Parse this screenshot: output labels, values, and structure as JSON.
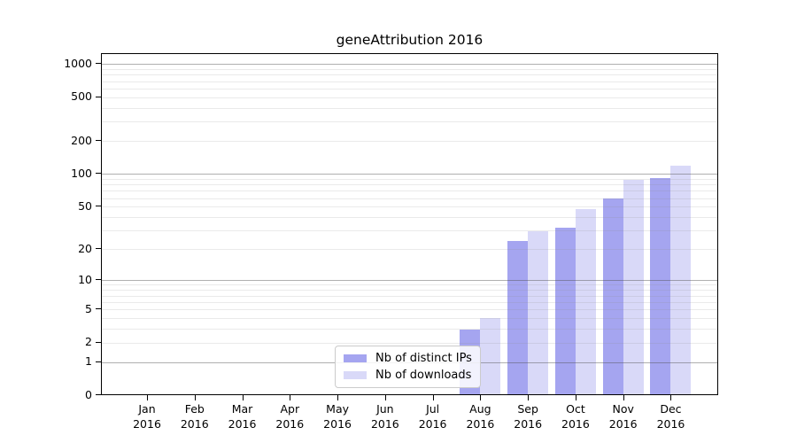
{
  "chart_data": {
    "type": "bar",
    "title": "geneAttribution 2016",
    "categories": [
      "Jan",
      "Feb",
      "Mar",
      "Apr",
      "May",
      "Jun",
      "Jul",
      "Aug",
      "Sep",
      "Oct",
      "Nov",
      "Dec"
    ],
    "year_label": "2016",
    "series": [
      {
        "name": "Nb of distinct IPs",
        "color": "#a5a5f0",
        "values": [
          0,
          0,
          0,
          0,
          0,
          0,
          0,
          3,
          24,
          32,
          60,
          92
        ]
      },
      {
        "name": "Nb of downloads",
        "color": "#d9d9f8",
        "values": [
          0,
          0,
          0,
          0,
          0,
          0,
          0,
          4,
          30,
          48,
          89,
          121
        ]
      }
    ],
    "yscale": "log1p",
    "ylim": [
      0,
      1250
    ],
    "yticks": [
      0,
      1,
      2,
      5,
      10,
      20,
      50,
      100,
      200,
      500,
      1000
    ],
    "major_gridlines": [
      1,
      10,
      100,
      1000
    ],
    "minor_gridlines": [
      2,
      3,
      4,
      5,
      6,
      7,
      8,
      9,
      20,
      30,
      40,
      50,
      60,
      70,
      80,
      90,
      200,
      300,
      400,
      500,
      600,
      700,
      800,
      900
    ],
    "grid": true,
    "legend_position": "lower center-left"
  }
}
